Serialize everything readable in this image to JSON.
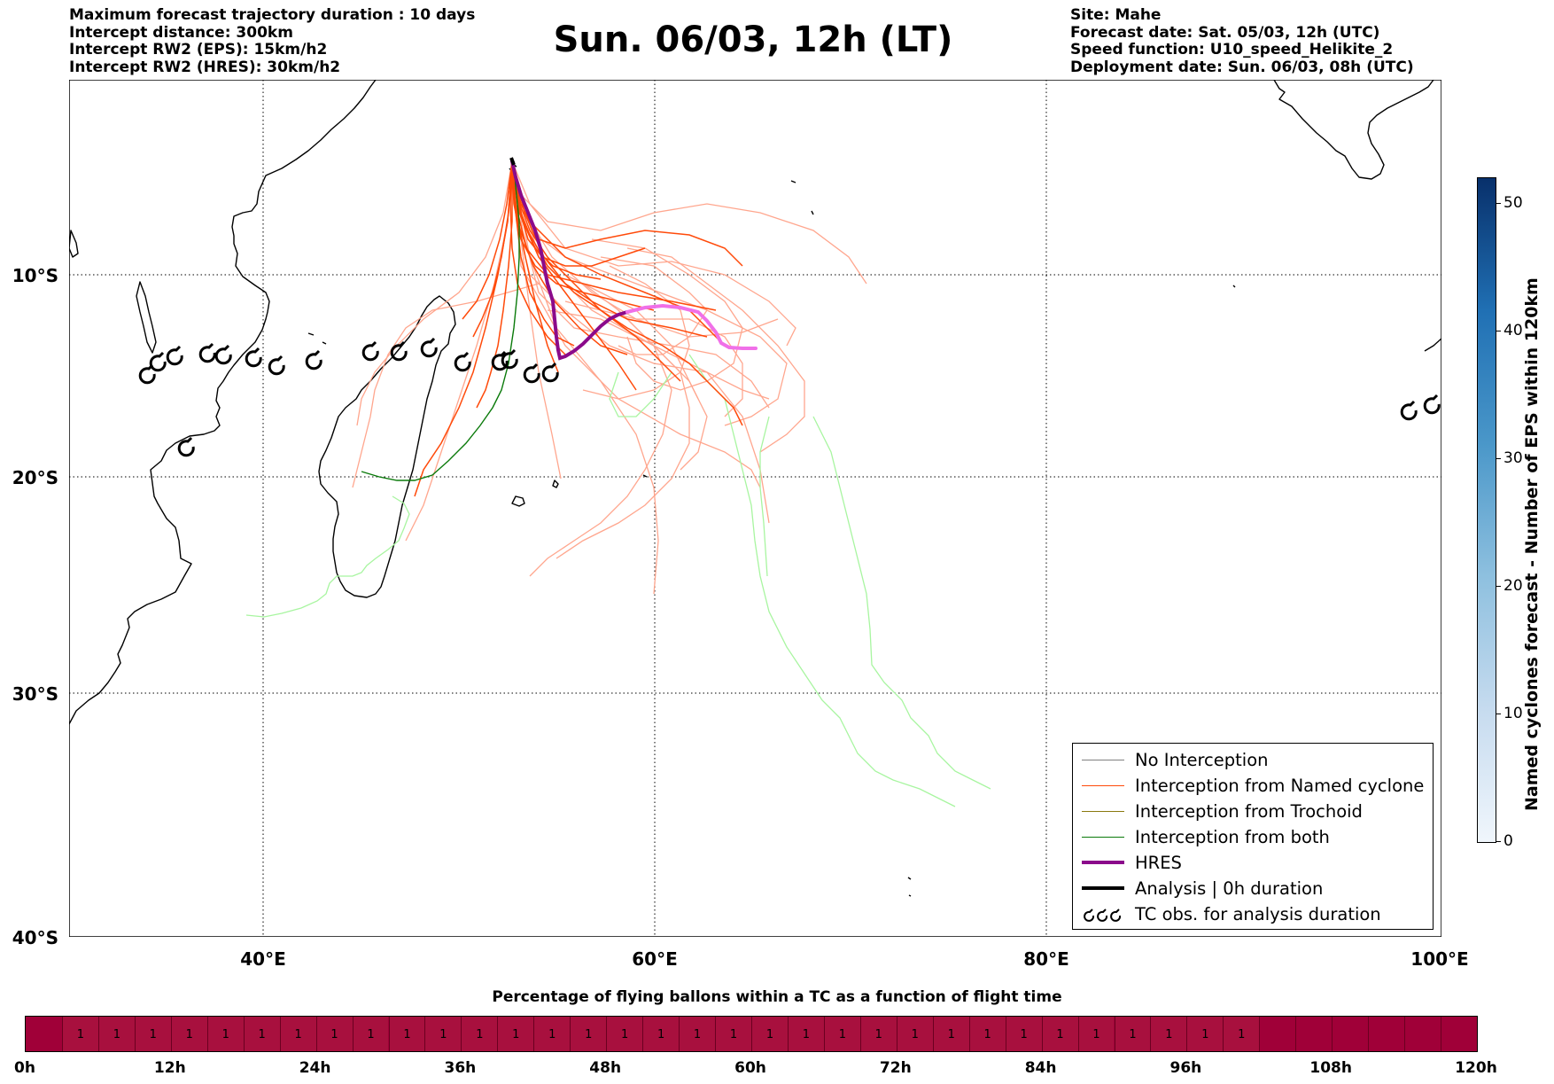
{
  "header_left": [
    "Maximum forecast trajectory duration : 10 days",
    "Intercept distance: 300km",
    "Intercept RW2 (EPS):  15km/h2",
    "Intercept RW2 (HRES): 30km/h2"
  ],
  "header_right": [
    "Site: Mahe",
    "Forecast date: Sat. 05/03, 12h (UTC)",
    "Speed function: U10_speed_Helikite_2",
    "Deployment date: Sun. 06/03, 08h (UTC)"
  ],
  "title": "Sun. 06/03, 12h (LT)",
  "map": {
    "lon_range": [
      30,
      100
    ],
    "lat_range": [
      -40,
      0
    ],
    "lat_labels": [
      "10°S",
      "20°S",
      "30°S",
      "40°S"
    ],
    "lon_labels": [
      "40°E",
      "60°E",
      "80°E",
      "100°E"
    ],
    "grid": "dotted",
    "colors": {
      "coast": "#000000",
      "named_cyclone": "#ff4a0a",
      "named_cyclone_light": "#ffa288",
      "trochoid": "#8b7a10",
      "both": "#0a7a0a",
      "both_light": "#a8f5a0",
      "hres": "#8b0a8b",
      "hres_late": "#f070e8",
      "no_interception": "#808080"
    },
    "tc_obs_symbol": "cyclone-icon"
  },
  "legend": [
    {
      "label": "No Interception",
      "color": "#808080",
      "width": 1.2
    },
    {
      "label": "Interception from Named cyclone",
      "color": "#ff4a0a",
      "width": 1.4
    },
    {
      "label": "Interception from Trochoid",
      "color": "#8b7a10",
      "width": 1.4
    },
    {
      "label": "Interception from both",
      "color": "#0a7a0a",
      "width": 1.4
    },
    {
      "label": "HRES",
      "color": "#8b0a8b",
      "width": 4
    },
    {
      "label": "Analysis | 0h duration",
      "color": "#000000",
      "width": 4
    },
    {
      "label": "TC obs. for analysis duration",
      "color": "#000000",
      "width": 0
    }
  ],
  "colorbar": {
    "title": "Named cyclones forecast - Number of EPS within 120km",
    "range": [
      0,
      52
    ],
    "ticks": [
      "0",
      "10",
      "20",
      "30",
      "40",
      "50"
    ],
    "colormap": "Blues"
  },
  "time_bar": {
    "title": "Percentage of flying ballons within a TC as a function of flight time",
    "labels": [
      "0h",
      "12h",
      "24h",
      "36h",
      "48h",
      "60h",
      "72h",
      "84h",
      "96h",
      "108h",
      "120h"
    ],
    "cell_values": [
      "",
      "1",
      "1",
      "1",
      "1",
      "1",
      "1",
      "1",
      "1",
      "1",
      "1",
      "1",
      "1",
      "1",
      "1",
      "1",
      "1",
      "1",
      "1",
      "1",
      "1",
      "1",
      "1",
      "1",
      "1",
      "1",
      "1",
      "1",
      "1",
      "1",
      "1",
      "1",
      "1",
      "1",
      "",
      "",
      "",
      "",
      "",
      ""
    ],
    "color": "#a00038"
  }
}
